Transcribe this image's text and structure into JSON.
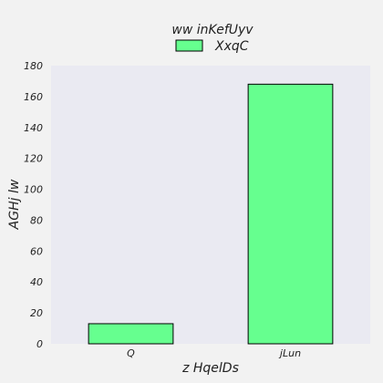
{
  "chart_data": {
    "type": "bar",
    "title": "ww inKefUyv",
    "xlabel": "z HqelDs",
    "ylabel": "AGHj lw",
    "categories": [
      "Q",
      "jLun"
    ],
    "series": [
      {
        "name": "XxqC",
        "values": [
          13,
          168
        ]
      }
    ],
    "ylim": [
      0,
      180
    ],
    "yticks": [
      0,
      20,
      40,
      60,
      80,
      100,
      120,
      140,
      160,
      180
    ],
    "grid": false,
    "legend_position": "top-center",
    "colors": {
      "bar_fill": "#66ff8f",
      "bar_edge": "#000000",
      "plot_background": "#eaeaf2",
      "figure_background": "#f2f2f2"
    }
  }
}
